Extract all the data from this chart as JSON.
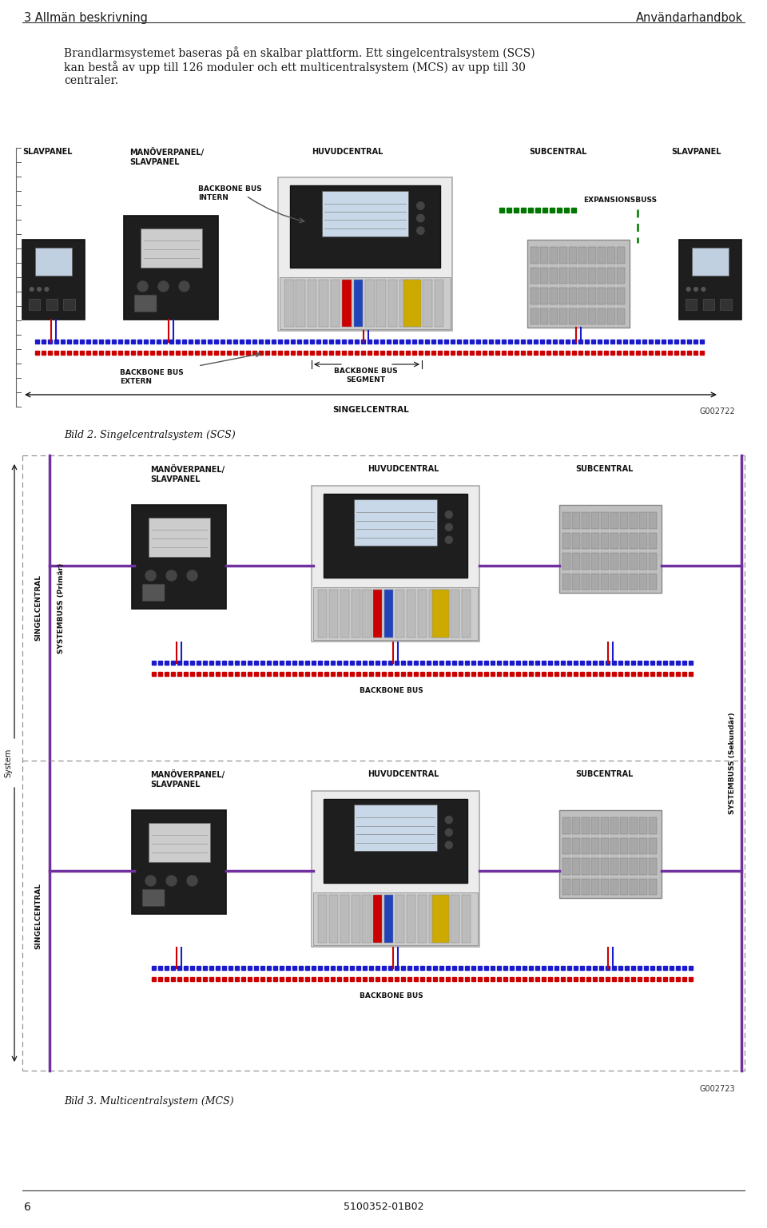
{
  "page_title_left": "3 Allmän beskrivning",
  "page_title_right": "Användarhandbok",
  "body_text_line1": "Brandlarmsystemet baseras på en skalbar plattform. Ett singelcentralsystem (SCS)",
  "body_text_line2": "kan bestå av upp till 126 moduler och ett multicentralsystem (MCS) av upp till 30",
  "body_text_line3": "centraler.",
  "diagram1_caption": "Bild 2. Singelcentralsystem (SCS)",
  "diagram2_caption": "Bild 3. Multicentralsystem (MCS)",
  "diagram1_id": "G002722",
  "diagram2_id": "G002723",
  "page_number": "6",
  "footer_code": "5100352-01B02",
  "bg_color": "#ffffff",
  "text_color": "#1a1a1a",
  "line_color": "#000000",
  "purple_color": "#7030a0",
  "red_color": "#cc0000",
  "blue_color": "#1a1acc",
  "green_color": "#007700",
  "dark_device": "#1e1e1e",
  "light_screen": "#d8d8d8",
  "module_bg": "#c8c8c8",
  "module_cell": "#aaaaaa",
  "frame_bg": "#efefef"
}
